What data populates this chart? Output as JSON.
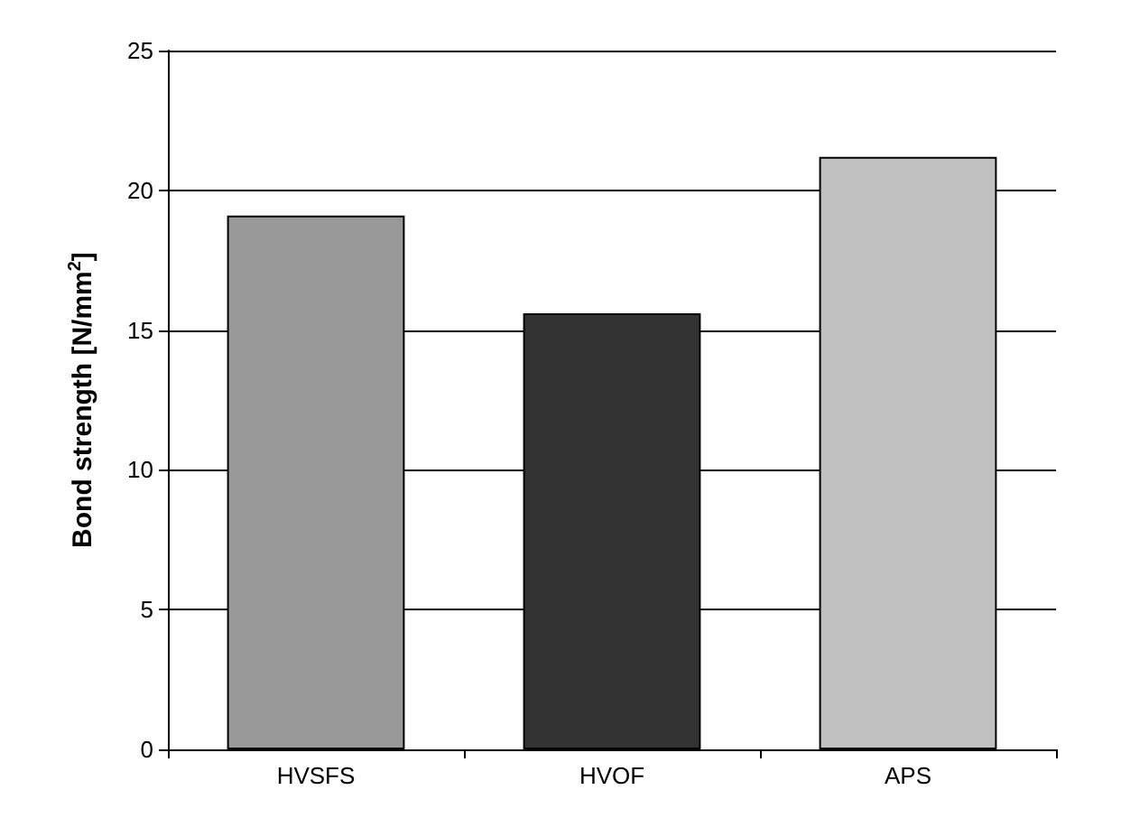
{
  "chart_data": {
    "type": "bar",
    "ylabel": "Bond strength [N/mm$^{2}$]",
    "categories": [
      "HVSFS",
      "HVOF",
      "APS"
    ],
    "values": [
      19.1,
      15.6,
      21.2
    ],
    "colors": [
      "#999999",
      "#333333",
      "#c0c0c0"
    ],
    "ylim": [
      0,
      25
    ],
    "yticks": [
      0,
      5,
      10,
      15,
      20,
      25
    ],
    "grid": "y"
  }
}
